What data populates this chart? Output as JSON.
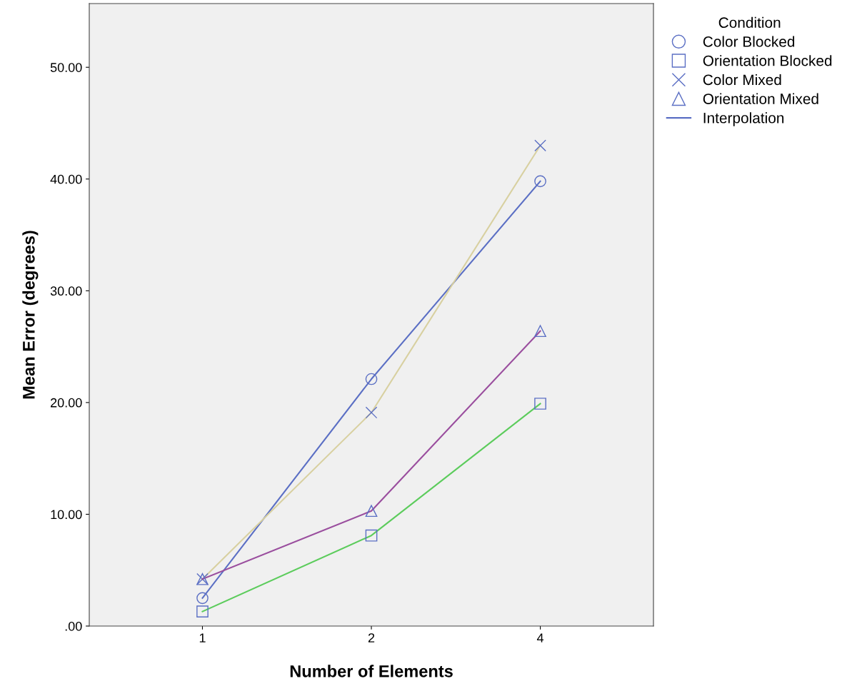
{
  "chart_data": {
    "type": "line",
    "xlabel": "Number of Elements",
    "ylabel": "Mean Error (degrees)",
    "legend_title": "Condition",
    "categories": [
      "1",
      "2",
      "4"
    ],
    "series": [
      {
        "name": "Color Blocked",
        "color": "#5b6fc4",
        "marker": "circle",
        "values": [
          2.5,
          22.1,
          39.8
        ]
      },
      {
        "name": "Orientation Blocked",
        "color": "#5ccc5c",
        "marker": "square",
        "values": [
          1.3,
          8.1,
          19.9
        ]
      },
      {
        "name": "Color Mixed",
        "color": "#d8d0a0",
        "marker": "cross",
        "values": [
          4.2,
          19.1,
          43.0
        ]
      },
      {
        "name": "Orientation Mixed",
        "color": "#9a4e9e",
        "marker": "triangle",
        "values": [
          4.2,
          10.3,
          26.4
        ]
      }
    ],
    "annotations": [
      "Interpolation"
    ],
    "ylim": [
      0,
      55.7
    ],
    "yticks": [
      {
        "value": 0,
        "label": ".00"
      },
      {
        "value": 10,
        "label": "10.00"
      },
      {
        "value": 20,
        "label": "20.00"
      },
      {
        "value": 30,
        "label": "30.00"
      },
      {
        "value": 40,
        "label": "40.00"
      },
      {
        "value": 50,
        "label": "50.00"
      }
    ],
    "grid": false,
    "legend": "top right"
  }
}
